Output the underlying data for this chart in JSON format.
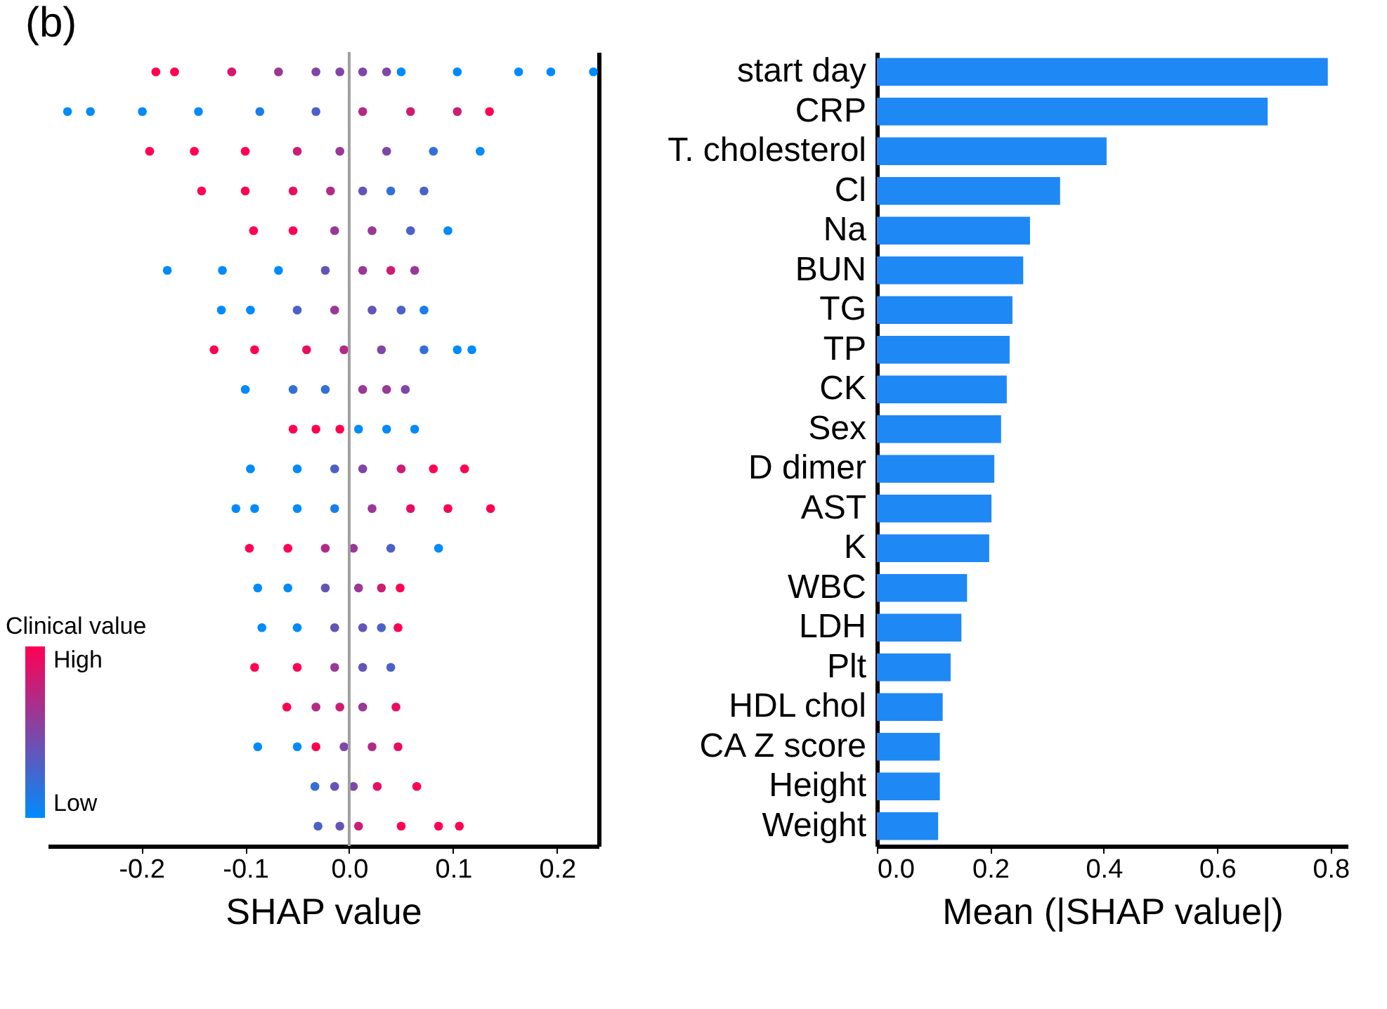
{
  "chart_data": [
    {
      "type": "scatter",
      "title": "(b)",
      "orientation": "horizontal",
      "xlabel": "SHAP value",
      "xlim": [
        -0.29,
        0.24
      ],
      "xticks": [
        {
          "value": -0.2,
          "label": "-0.2"
        },
        {
          "value": -0.1,
          "label": "-0.1"
        },
        {
          "value": 0,
          "label": "0.0"
        },
        {
          "value": 0.1,
          "label": "0.1"
        },
        {
          "value": 0.2,
          "label": "0.2"
        }
      ],
      "marker": "circle",
      "legend_title": "Clinical value",
      "annotations": [
        "High",
        "Low"
      ],
      "ref_lines": [
        {
          "axis": "x",
          "value": 0,
          "color": "#a0a0a0"
        }
      ],
      "categories": [
        null,
        null,
        null,
        null,
        null,
        null,
        null,
        null,
        null,
        null,
        null,
        null,
        null,
        null,
        null,
        null,
        null,
        null,
        null,
        null
      ],
      "series": [
        {
          "values": [
            -0.186,
            -0.271,
            -0.192,
            -0.142,
            -0.092,
            -0.175,
            -0.123,
            -0.13,
            -0.1,
            -0.054,
            -0.095,
            -0.109,
            -0.096,
            -0.088,
            -0.084,
            -0.091,
            -0.06,
            -0.088,
            -0.033,
            -0.03
          ],
          "colors": [
            "#ff0052",
            "#008bfb",
            "#ff0052",
            "#ff0052",
            "#ff0052",
            "#008bfb",
            "#008bfb",
            "#ff0052",
            "#008bfb",
            "#ff0052",
            "#008bfb",
            "#008bfb",
            "#ff0052",
            "#008bfb",
            "#008bfb",
            "#ff0052",
            "#ff0052",
            "#008bfb",
            "#336fd9",
            "#4c61c8"
          ]
        },
        {
          "values": [
            -0.168,
            -0.249,
            -0.149,
            -0.1,
            -0.054,
            -0.122,
            -0.095,
            -0.091,
            -0.054,
            -0.032,
            -0.05,
            -0.091,
            -0.059,
            -0.059,
            -0.05,
            -0.05,
            -0.032,
            -0.05,
            -0.014,
            -0.009
          ],
          "colors": [
            "#ff0052",
            "#008bfb",
            "#ff0052",
            "#ff0052",
            "#ff0052",
            "#008bfb",
            "#008bfb",
            "#ff0052",
            "#336fd9",
            "#ff0052",
            "#008bfb",
            "#008bfb",
            "#ff0052",
            "#008bfb",
            "#008bfb",
            "#ff0052",
            "#b32a85",
            "#008bfb",
            "#6653b7",
            "#6653b7"
          ]
        },
        {
          "values": [
            -0.113,
            -0.199,
            -0.1,
            -0.054,
            -0.014,
            -0.068,
            -0.05,
            -0.041,
            -0.023,
            -0.009,
            -0.014,
            -0.05,
            -0.023,
            -0.023,
            -0.014,
            -0.014,
            -0.009,
            -0.032,
            0.004,
            0.009
          ],
          "colors": [
            "#d9156b",
            "#008bfb",
            "#ff0052",
            "#e60e63",
            "#993896",
            "#008bfb",
            "#4c61c8",
            "#e60e63",
            "#336fd9",
            "#ff0052",
            "#4c61c8",
            "#008bfb",
            "#b32a85",
            "#6653b7",
            "#6653b7",
            "#993896",
            "#cc1c74",
            "#ff0052",
            "#8046a7",
            "#cc1c74"
          ]
        },
        {
          "values": [
            -0.068,
            -0.145,
            -0.05,
            -0.018,
            0.022,
            -0.023,
            -0.014,
            -0.005,
            0.013,
            0.009,
            0.013,
            -0.014,
            0.004,
            0.009,
            0.013,
            0.013,
            0.013,
            -0.005,
            0.027,
            0.05
          ],
          "colors": [
            "#993896",
            "#008bfb",
            "#cc1c74",
            "#b32a85",
            "#993896",
            "#6653b7",
            "#993896",
            "#b32a85",
            "#993896",
            "#008bfb",
            "#8046a7",
            "#1a7dea",
            "#993896",
            "#993896",
            "#6653b7",
            "#6653b7",
            "#993896",
            "#8046a7",
            "#e60e63",
            "#ff0052"
          ]
        },
        {
          "values": [
            -0.032,
            -0.086,
            -0.009,
            0.013,
            0.059,
            0.013,
            0.022,
            0.031,
            0.036,
            0.036,
            0.05,
            0.022,
            0.04,
            0.031,
            0.031,
            0.04,
            0.045,
            0.022,
            0.065,
            0.086
          ],
          "colors": [
            "#8046a7",
            "#1a7dea",
            "#993896",
            "#6653b7",
            "#4c61c8",
            "#993896",
            "#6653b7",
            "#8046a7",
            "#993896",
            "#008bfb",
            "#cc1c74",
            "#993896",
            "#4c61c8",
            "#cc1c74",
            "#4c61c8",
            "#4c61c8",
            "#e60e63",
            "#b32a85",
            "#ff0052",
            "#ff0052"
          ]
        },
        {
          "values": [
            -0.009,
            -0.032,
            0.036,
            0.04,
            0.095,
            0.04,
            0.05,
            0.072,
            0.054,
            0.063,
            0.081,
            0.059,
            0.086,
            0.049,
            0.047,
            null,
            null,
            0.047,
            null,
            0.106
          ],
          "colors": [
            "#8046a7",
            "#4c61c8",
            "#8046a7",
            "#336fd9",
            "#008bfb",
            "#cc1c74",
            "#4c61c8",
            "#336fd9",
            "#8046a7",
            "#008bfb",
            "#ff0052",
            "#e60e63",
            "#008bfb",
            "#ff0052",
            "#ff0052",
            null,
            null,
            "#e60e63",
            null,
            "#ff0052"
          ]
        },
        {
          "values": [
            0.013,
            0.013,
            0.081,
            0.072,
            null,
            0.063,
            0.072,
            0.104,
            null,
            null,
            0.111,
            0.095,
            null,
            null,
            null,
            null,
            null,
            null,
            null,
            null
          ],
          "colors": [
            "#8046a7",
            "#b32a85",
            "#336fd9",
            "#4c61c8",
            null,
            "#993896",
            "#1a7dea",
            "#008bfb",
            null,
            null,
            "#ff0052",
            "#ff0052",
            null,
            null,
            null,
            null,
            null,
            null,
            null,
            null
          ]
        },
        {
          "values": [
            0.036,
            0.059,
            0.126,
            null,
            null,
            null,
            null,
            0.118,
            null,
            null,
            null,
            0.136,
            null,
            null,
            null,
            null,
            null,
            null,
            null,
            null
          ],
          "colors": [
            "#8046a7",
            "#cc1c74",
            "#008bfb",
            null,
            null,
            null,
            null,
            "#008bfb",
            null,
            null,
            null,
            "#ff0052",
            null,
            null,
            null,
            null,
            null,
            null,
            null,
            null
          ]
        },
        {
          "values": [
            0.05,
            0.104,
            null,
            null,
            null,
            null,
            null,
            null,
            null,
            null,
            null,
            null,
            null,
            null,
            null,
            null,
            null,
            null,
            null,
            null
          ],
          "colors": [
            "#008bfb",
            "#cc1c74",
            null,
            null,
            null,
            null,
            null,
            null,
            null,
            null,
            null,
            null,
            null,
            null,
            null,
            null,
            null,
            null,
            null,
            null
          ]
        },
        {
          "values": [
            0.104,
            0.135,
            null,
            null,
            null,
            null,
            null,
            null,
            null,
            null,
            null,
            null,
            null,
            null,
            null,
            null,
            null,
            null,
            null,
            null
          ],
          "colors": [
            "#008bfb",
            "#ff0052",
            null,
            null,
            null,
            null,
            null,
            null,
            null,
            null,
            null,
            null,
            null,
            null,
            null,
            null,
            null,
            null,
            null,
            null
          ]
        },
        {
          "values": [
            0.163,
            null,
            null,
            null,
            null,
            null,
            null,
            null,
            null,
            null,
            null,
            null,
            null,
            null,
            null,
            null,
            null,
            null,
            null,
            null
          ],
          "color": "#008bfb"
        },
        {
          "values": [
            0.194,
            null,
            null,
            null,
            null,
            null,
            null,
            null,
            null,
            null,
            null,
            null,
            null,
            null,
            null,
            null,
            null,
            null,
            null,
            null
          ],
          "color": "#008bfb"
        },
        {
          "values": [
            0.235,
            null,
            null,
            null,
            null,
            null,
            null,
            null,
            null,
            null,
            null,
            null,
            null,
            null,
            null,
            null,
            null,
            null,
            null,
            null
          ],
          "color": "#008bfb"
        }
      ]
    },
    {
      "type": "bar",
      "orientation": "horizontal",
      "xlabel": "Mean (|SHAP value|)",
      "xlim": [
        0,
        0.83
      ],
      "xticks": [
        {
          "value": 0,
          "label": "0.0"
        },
        {
          "value": 0.2,
          "label": "0.2"
        },
        {
          "value": 0.4,
          "label": "0.4"
        },
        {
          "value": 0.6,
          "label": "0.6"
        },
        {
          "value": 0.8,
          "label": "0.8"
        }
      ],
      "color": "#1e88f5",
      "categories": [
        "start day",
        "CRP",
        "T. cholesterol",
        "Cl",
        "Na",
        "BUN",
        "TG",
        "TP",
        "CK",
        "Sex",
        "D dimer",
        "AST",
        "K",
        "WBC",
        "LDH",
        "Plt",
        "HDL chol",
        "CA Z score",
        "Height",
        "Weight"
      ],
      "values": [
        0.795,
        0.689,
        0.405,
        0.323,
        0.27,
        0.258,
        0.239,
        0.234,
        0.229,
        0.219,
        0.207,
        0.202,
        0.198,
        0.159,
        0.149,
        0.13,
        0.116,
        0.111,
        0.111,
        0.108
      ]
    }
  ]
}
